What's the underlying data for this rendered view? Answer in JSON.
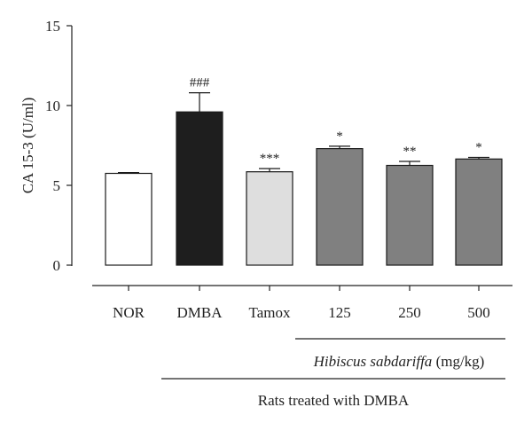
{
  "chart_data": {
    "type": "bar",
    "ylabel": "CA 15-3 (U/ml)",
    "ylim": [
      0,
      15
    ],
    "yticks": [
      0,
      5,
      10,
      15
    ],
    "grid": false,
    "categories": [
      "NOR",
      "DMBA",
      "Tamox",
      "125",
      "250",
      "500"
    ],
    "values": [
      5.75,
      9.6,
      5.85,
      7.3,
      6.25,
      6.65
    ],
    "errors": [
      0.05,
      1.2,
      0.2,
      0.15,
      0.25,
      0.1
    ],
    "annotations": [
      "",
      "###",
      "***",
      "*",
      "**",
      "*"
    ],
    "bar_colors": [
      "#ffffff",
      "#1e1e1e",
      "#dedede",
      "#808080",
      "#808080",
      "#808080"
    ],
    "bar_stroke": "#1a1a1a",
    "group_labels": {
      "hibiscus_italic": "Hibiscus sabdariffa",
      "hibiscus_unit": " (mg/kg)",
      "treated": "Rats treated with DMBA"
    }
  }
}
